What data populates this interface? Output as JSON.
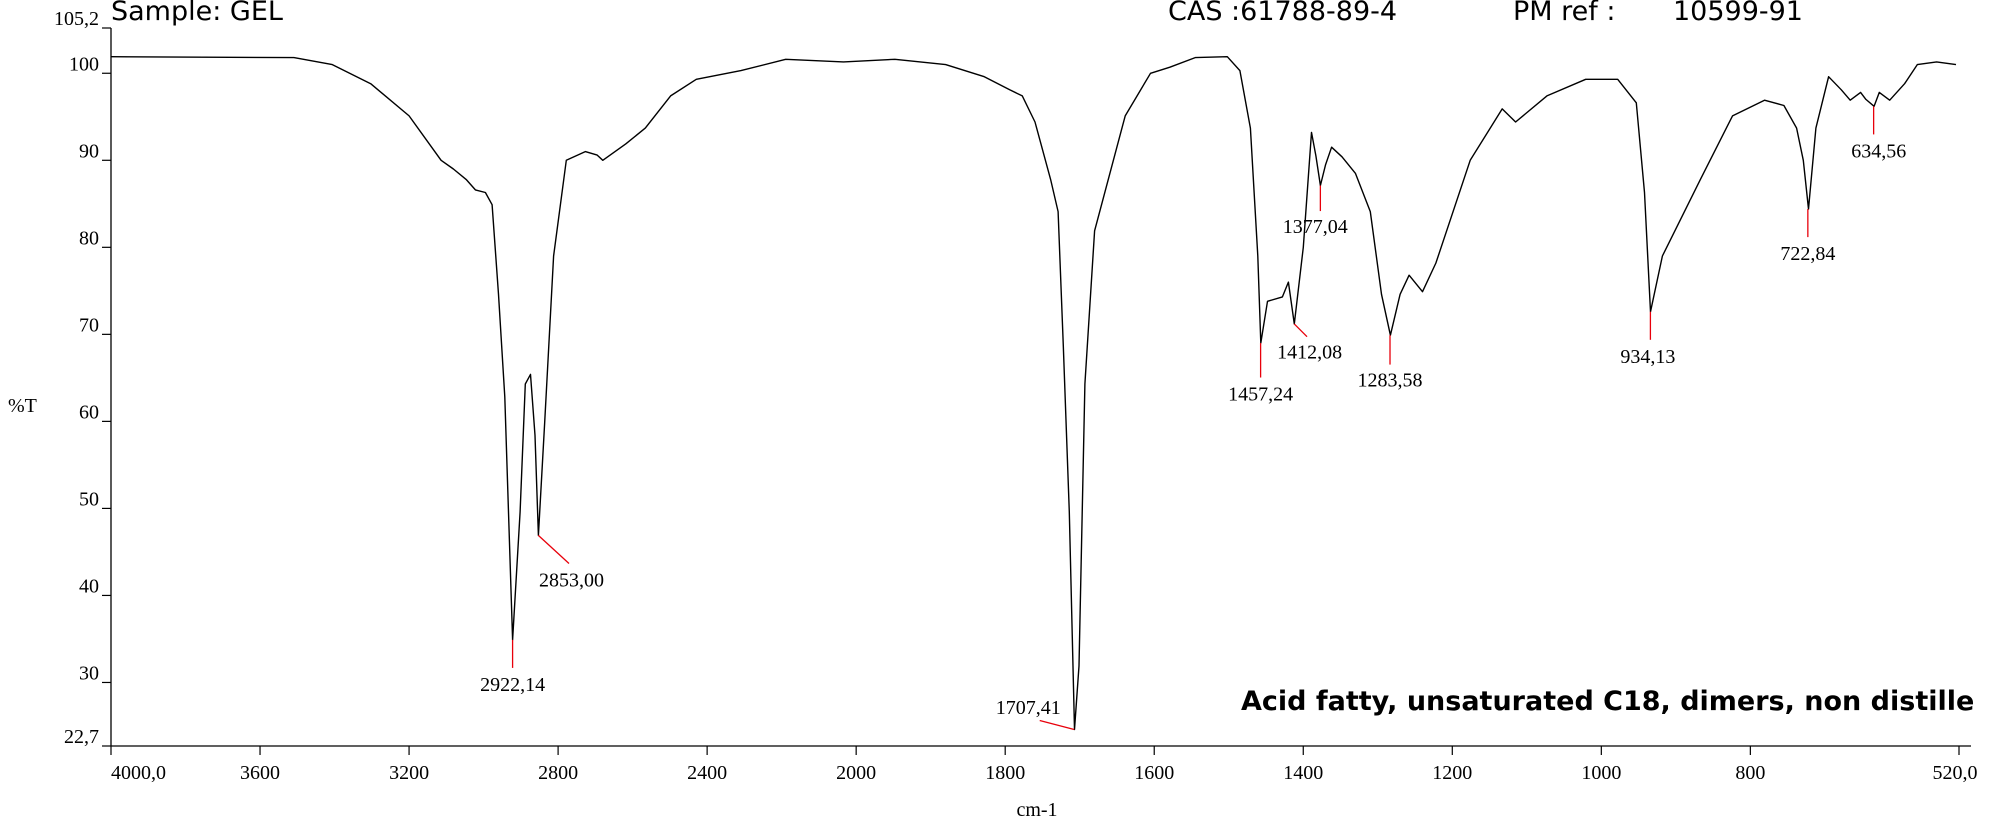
{
  "chart_data": {
    "type": "line",
    "header": {
      "sample": "Sample: GEL",
      "cas": "CAS :61788-89-4",
      "pm_ref_label": "PM ref :",
      "pm_ref": "10599-91"
    },
    "annotation": "Acid fatty, unsaturated C18, dimers, non distille",
    "xlabel": "cm-1",
    "ylabel": "%T",
    "xlim": [
      4000,
      520
    ],
    "ylim": [
      22.7,
      105.2
    ],
    "xscale": {
      "break": 2000,
      "ratio": 2
    },
    "xticks": [
      {
        "value": 4000,
        "label": "4000,0"
      },
      3600,
      3200,
      2800,
      2400,
      2000,
      1800,
      1600,
      1400,
      1200,
      1000,
      800,
      {
        "value": 520,
        "label": "520,0"
      }
    ],
    "yticks": [
      {
        "value": 22.7,
        "label": "22,7"
      },
      30,
      40,
      50,
      60,
      70,
      80,
      90,
      100,
      {
        "value": 105.2,
        "label": "105,2"
      }
    ],
    "color": "#000000",
    "peak_color": "#e8000b",
    "x": [
      4000,
      3509,
      3406,
      3303,
      3200,
      3114,
      3081,
      3047,
      3022,
      2995,
      2977,
      2960,
      2943,
      2922,
      2902,
      2888,
      2874,
      2862,
      2853,
      2836,
      2812,
      2778,
      2727,
      2695,
      2680,
      2618,
      2566,
      2498,
      2429,
      2309,
      2189,
      2034,
      1948,
      1880,
      1828,
      1794,
      1777,
      1760,
      1739,
      1729,
      1722,
      1714,
      1707,
      1701,
      1693,
      1680,
      1639,
      1605,
      1579,
      1545,
      1502,
      1485,
      1471,
      1461,
      1457,
      1448,
      1428,
      1420,
      1412,
      1400,
      1389,
      1383,
      1377,
      1370,
      1362,
      1348,
      1330,
      1310,
      1295,
      1283,
      1270,
      1258,
      1240,
      1222,
      1176,
      1133,
      1115,
      1073,
      1021,
      978,
      953,
      942,
      934,
      918,
      867,
      824,
      781,
      755,
      738,
      729,
      722,
      712,
      695,
      678,
      666,
      652,
      645,
      634,
      627,
      613,
      593,
      576,
      550,
      524
    ],
    "values": [
      101.9,
      101.8,
      101.0,
      98.8,
      95.1,
      90.0,
      89.0,
      87.8,
      86.6,
      86.3,
      84.9,
      74.6,
      62.8,
      34.9,
      49.6,
      64.3,
      65.4,
      58.4,
      46.9,
      59.9,
      79.0,
      90.0,
      91.0,
      90.6,
      90.0,
      91.9,
      93.7,
      97.4,
      99.3,
      100.3,
      101.6,
      101.3,
      101.6,
      101.0,
      99.6,
      98.1,
      97.4,
      94.4,
      87.8,
      84.1,
      68.7,
      49.6,
      24.6,
      31.9,
      64.3,
      81.9,
      95.1,
      100.0,
      100.7,
      101.8,
      101.9,
      100.3,
      93.7,
      79.0,
      69.0,
      73.8,
      74.3,
      76.0,
      71.2,
      80.0,
      93.2,
      90.5,
      87.1,
      89.5,
      91.5,
      90.4,
      88.5,
      84.1,
      74.6,
      69.9,
      74.6,
      76.8,
      74.9,
      78.2,
      90.0,
      95.9,
      94.4,
      97.4,
      99.3,
      99.3,
      96.6,
      86.3,
      72.6,
      79.0,
      87.8,
      95.1,
      96.9,
      96.3,
      93.7,
      90.0,
      84.4,
      93.7,
      99.6,
      98.1,
      96.9,
      97.8,
      97.0,
      96.2,
      97.8,
      96.9,
      98.8,
      101.0,
      101.3,
      101.0
    ],
    "peaks": [
      {
        "x": 2922.14,
        "y": 34.9,
        "label": "2922,14"
      },
      {
        "x": 2853.0,
        "y": 46.9,
        "label": "2853,00"
      },
      {
        "x": 1707.41,
        "y": 24.6,
        "label": "1707,41"
      },
      {
        "x": 1457.24,
        "y": 69.0,
        "label": "1457,24"
      },
      {
        "x": 1412.08,
        "y": 71.2,
        "label": "1412,08"
      },
      {
        "x": 1377.04,
        "y": 87.1,
        "label": "1377,04"
      },
      {
        "x": 1283.58,
        "y": 69.9,
        "label": "1283,58"
      },
      {
        "x": 934.13,
        "y": 72.6,
        "label": "934,13"
      },
      {
        "x": 722.84,
        "y": 84.4,
        "label": "722,84"
      },
      {
        "x": 634.56,
        "y": 96.2,
        "label": "634,56"
      }
    ]
  }
}
